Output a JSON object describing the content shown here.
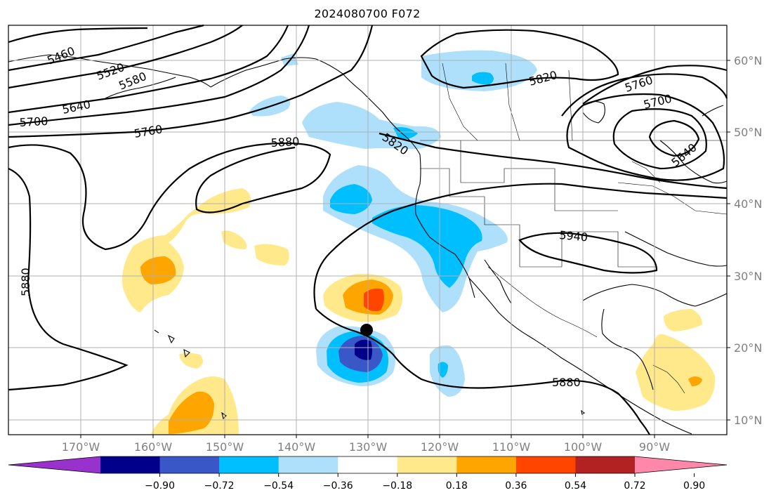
{
  "title": "2024080700 F072",
  "longitude_labels": [
    "170°W",
    "160°W",
    "150°W",
    "140°W",
    "130°W",
    "120°W",
    "110°W",
    "100°W",
    "90°W"
  ],
  "latitude_labels": [
    "60°N",
    "50°N",
    "40°N",
    "30°N",
    "20°N",
    "10°N"
  ],
  "contour_labels": [
    "5460",
    "5520",
    "5580",
    "5640",
    "5700",
    "5760",
    "5880",
    "5820",
    "5760",
    "5700",
    "5640",
    "5820",
    "5940",
    "5880",
    "5880"
  ],
  "colorbar": {
    "ticks": [
      "−0.90",
      "−0.72",
      "−0.54",
      "−0.36",
      "−0.18",
      "0.18",
      "0.36",
      "0.54",
      "0.72",
      "0.90"
    ],
    "colors": [
      "#9932cc",
      "#00008b",
      "#3a57c8",
      "#00bfff",
      "#aee0fb",
      "#ffffff",
      "#ffe98a",
      "#ffa500",
      "#ff4500",
      "#b22222",
      "#ff88aa"
    ]
  },
  "marker": "storm-position-dot"
}
